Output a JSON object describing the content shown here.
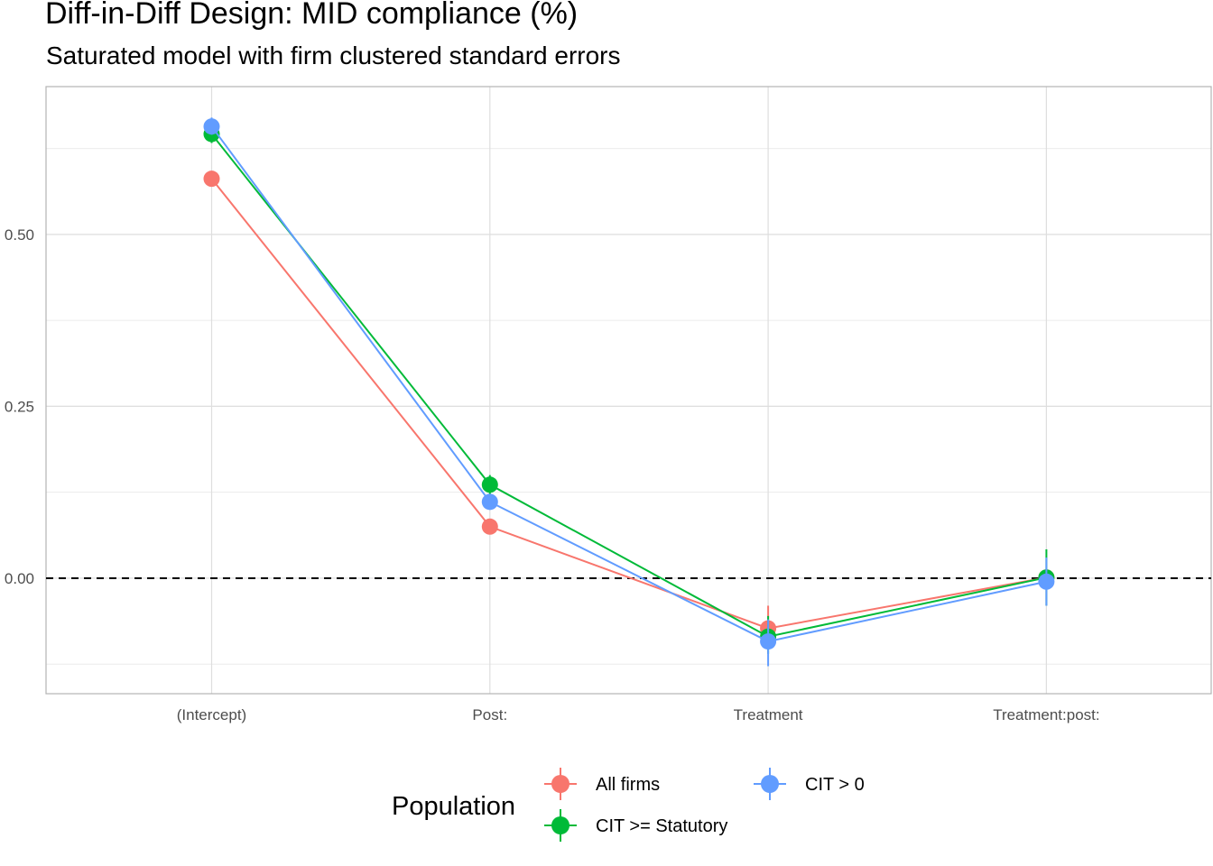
{
  "chart_data": {
    "type": "line",
    "title": "Diff-in-Diff Design: MID compliance (%)",
    "subtitle": "Saturated model with firm clustered standard errors",
    "xlabel": "",
    "ylabel": "",
    "categories": [
      "(Intercept)",
      "Post:",
      "Treatment",
      "Treatment:post:"
    ],
    "y_ticks": [
      0.0,
      0.25,
      0.5
    ],
    "y_tick_labels": [
      "0.00",
      "0.25",
      "0.50"
    ],
    "ylim": [
      -0.168,
      0.715
    ],
    "reference_line": {
      "y": 0,
      "style": "dashed"
    },
    "grid": true,
    "legend": {
      "title": "Population",
      "position": "bottom"
    },
    "series": [
      {
        "name": "All firms",
        "color": "#F8766D",
        "values": [
          0.581,
          0.075,
          -0.073,
          0.001
        ],
        "ci_low": [
          0.575,
          0.068,
          -0.098,
          -0.012
        ],
        "ci_high": [
          0.587,
          0.082,
          -0.04,
          0.014
        ]
      },
      {
        "name": "CIT >= Statutory",
        "color": "#00BA38",
        "values": [
          0.646,
          0.136,
          -0.085,
          0.001
        ],
        "ci_low": [
          0.633,
          0.122,
          -0.11,
          -0.04
        ],
        "ci_high": [
          0.66,
          0.15,
          -0.055,
          0.042
        ]
      },
      {
        "name": "CIT > 0",
        "color": "#619CFF",
        "values": [
          0.657,
          0.111,
          -0.092,
          -0.005
        ],
        "ci_low": [
          0.645,
          0.1,
          -0.128,
          -0.04
        ],
        "ci_high": [
          0.67,
          0.122,
          -0.06,
          0.03
        ]
      }
    ],
    "legend_layout": [
      [
        "All firms",
        "CIT > 0"
      ],
      [
        "CIT >= Statutory"
      ]
    ]
  }
}
